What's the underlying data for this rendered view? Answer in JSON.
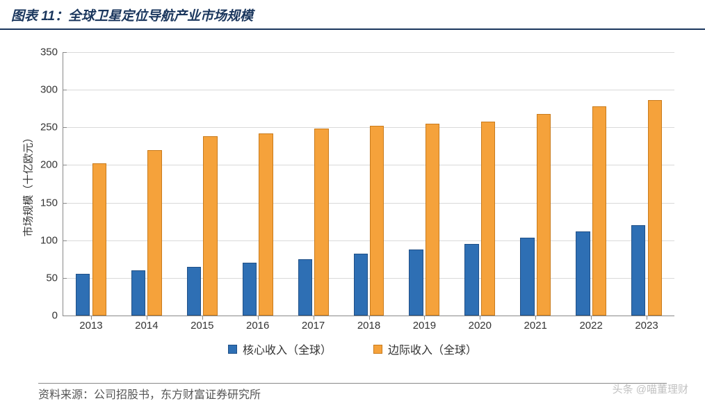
{
  "title": "图表 11：全球卫星定位导航产业市场规模",
  "title_fontsize": 19,
  "title_color": "#1a365d",
  "chart": {
    "type": "bar",
    "categories": [
      "2013",
      "2014",
      "2015",
      "2016",
      "2017",
      "2018",
      "2019",
      "2020",
      "2021",
      "2022",
      "2023"
    ],
    "series": [
      {
        "name": "核心收入（全球）",
        "color": "#2e6fb4",
        "border": "#1f4f86",
        "values": [
          55,
          60,
          65,
          70,
          75,
          82,
          88,
          95,
          103,
          112,
          120
        ]
      },
      {
        "name": "边际收入（全球）",
        "color": "#f5a23b",
        "border": "#c97b1c",
        "values": [
          202,
          220,
          238,
          242,
          248,
          252,
          255,
          258,
          268,
          278,
          286
        ]
      }
    ],
    "ylim": [
      0,
      350
    ],
    "ytick_step": 50,
    "ylabel": "市场规模（十亿欧元）",
    "label_fontsize": 15,
    "tick_fontsize": 15,
    "grid_color": "#d9d9d9",
    "background_color": "#ffffff",
    "bar_group_width": 0.55,
    "bar_gap": 0.04
  },
  "legend": {
    "item0": "核心收入（全球）",
    "item1": "边际收入（全球）"
  },
  "source": "资料来源：公司招股书，东方财富证券研究所",
  "watermark": "头条 @喵董理财"
}
